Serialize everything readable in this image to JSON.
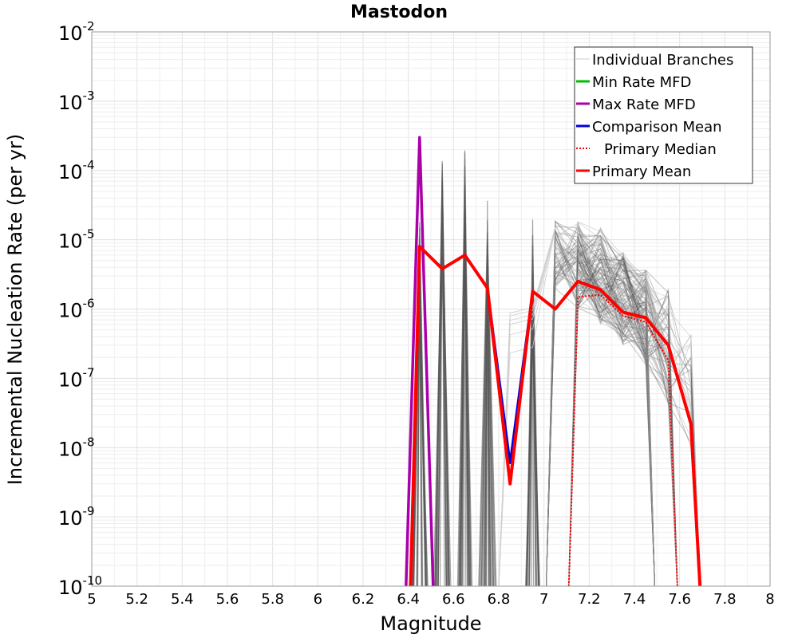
{
  "chart_data": {
    "type": "line",
    "title": "Mastodon",
    "xlabel": "Magnitude",
    "ylabel": "Incremental Nucleation Rate (per yr)",
    "xlim": [
      5,
      8
    ],
    "ylim": [
      1e-10,
      0.01
    ],
    "yscale": "log",
    "grid": true,
    "legend_position": "top-right",
    "x_ticks": [
      "5",
      "5.2",
      "5.4",
      "5.6",
      "5.8",
      "6",
      "6.2",
      "6.4",
      "6.6",
      "6.8",
      "7",
      "7.2",
      "7.4",
      "7.6",
      "7.8",
      "8"
    ],
    "y_ticks": [
      {
        "base": "10",
        "exp": "-10",
        "value": 1e-10
      },
      {
        "base": "10",
        "exp": "-9",
        "value": 1e-09
      },
      {
        "base": "10",
        "exp": "-8",
        "value": 1e-08
      },
      {
        "base": "10",
        "exp": "-7",
        "value": 1e-07
      },
      {
        "base": "10",
        "exp": "-6",
        "value": 1e-06
      },
      {
        "base": "10",
        "exp": "-5",
        "value": 1e-05
      },
      {
        "base": "10",
        "exp": "-4",
        "value": 0.0001
      },
      {
        "base": "10",
        "exp": "-3",
        "value": 0.001
      },
      {
        "base": "10",
        "exp": "-2",
        "value": 0.01
      }
    ],
    "legend": [
      {
        "label": "Individual Branches",
        "color": "#cccccc",
        "style": "solid"
      },
      {
        "label": "Min Rate MFD",
        "color": "#00bb00",
        "style": "solid"
      },
      {
        "label": "Max Rate MFD",
        "color": "#aa00aa",
        "style": "solid"
      },
      {
        "label": "Comparison Mean",
        "color": "#0000dd",
        "style": "solid"
      },
      {
        "label": "Primary Median",
        "color": "#ff0000",
        "style": "dotted"
      },
      {
        "label": "Primary Mean",
        "color": "#ff0000",
        "style": "solid"
      }
    ],
    "series": [
      {
        "name": "Max Rate MFD",
        "color": "#aa00aa",
        "x": [
          6.39,
          6.45,
          6.51
        ],
        "y": [
          1e-10,
          0.0003,
          1e-10
        ]
      },
      {
        "name": "Comparison Mean",
        "color": "#0000dd",
        "x": [
          6.41,
          6.45,
          6.55,
          6.65,
          6.75,
          6.85,
          6.95,
          7.05,
          7.15,
          7.25,
          7.35,
          7.45,
          7.55,
          7.65,
          7.69
        ],
        "y": [
          1e-10,
          8e-06,
          3.8e-06,
          6e-06,
          2e-06,
          6e-09,
          1.8e-06,
          1e-06,
          2.5e-06,
          1.9e-06,
          9e-07,
          7.5e-07,
          3e-07,
          2.2e-08,
          1e-10
        ]
      },
      {
        "name": "Primary Median",
        "color": "#ff0000",
        "x": [
          7.11,
          7.15,
          7.25,
          7.35,
          7.45,
          7.55,
          7.59
        ],
        "y": [
          1e-10,
          1.5e-06,
          1.6e-06,
          8e-07,
          6.5e-07,
          1.8e-07,
          1e-10
        ]
      },
      {
        "name": "Primary Mean",
        "color": "#ff0000",
        "x": [
          6.41,
          6.45,
          6.55,
          6.65,
          6.75,
          6.85,
          6.95,
          7.05,
          7.15,
          7.25,
          7.35,
          7.45,
          7.55,
          7.65,
          7.69
        ],
        "y": [
          1e-10,
          8e-06,
          3.8e-06,
          6e-06,
          2e-06,
          3e-09,
          1.8e-06,
          1e-06,
          2.5e-06,
          1.9e-06,
          9e-07,
          7.5e-07,
          3e-07,
          2.2e-08,
          1e-10
        ]
      }
    ],
    "branch_spikes": [
      {
        "x": 6.45,
        "peak": 4e-05
      },
      {
        "x": 6.55,
        "peak": 0.0002
      },
      {
        "x": 6.65,
        "peak": 0.0002
      },
      {
        "x": 6.75,
        "peak": 0.0001
      },
      {
        "x": 6.95,
        "peak": 2e-05
      }
    ],
    "branch_band": {
      "x": [
        7.05,
        7.15,
        7.25,
        7.35,
        7.45,
        7.55,
        7.65
      ],
      "upper": [
        2e-05,
        2e-05,
        1.5e-05,
        7e-06,
        4e-06,
        2e-06,
        5e-07
      ],
      "lower": [
        2e-06,
        1e-06,
        6e-07,
        3e-07,
        1.5e-07,
        4e-08,
        1e-08
      ]
    }
  }
}
